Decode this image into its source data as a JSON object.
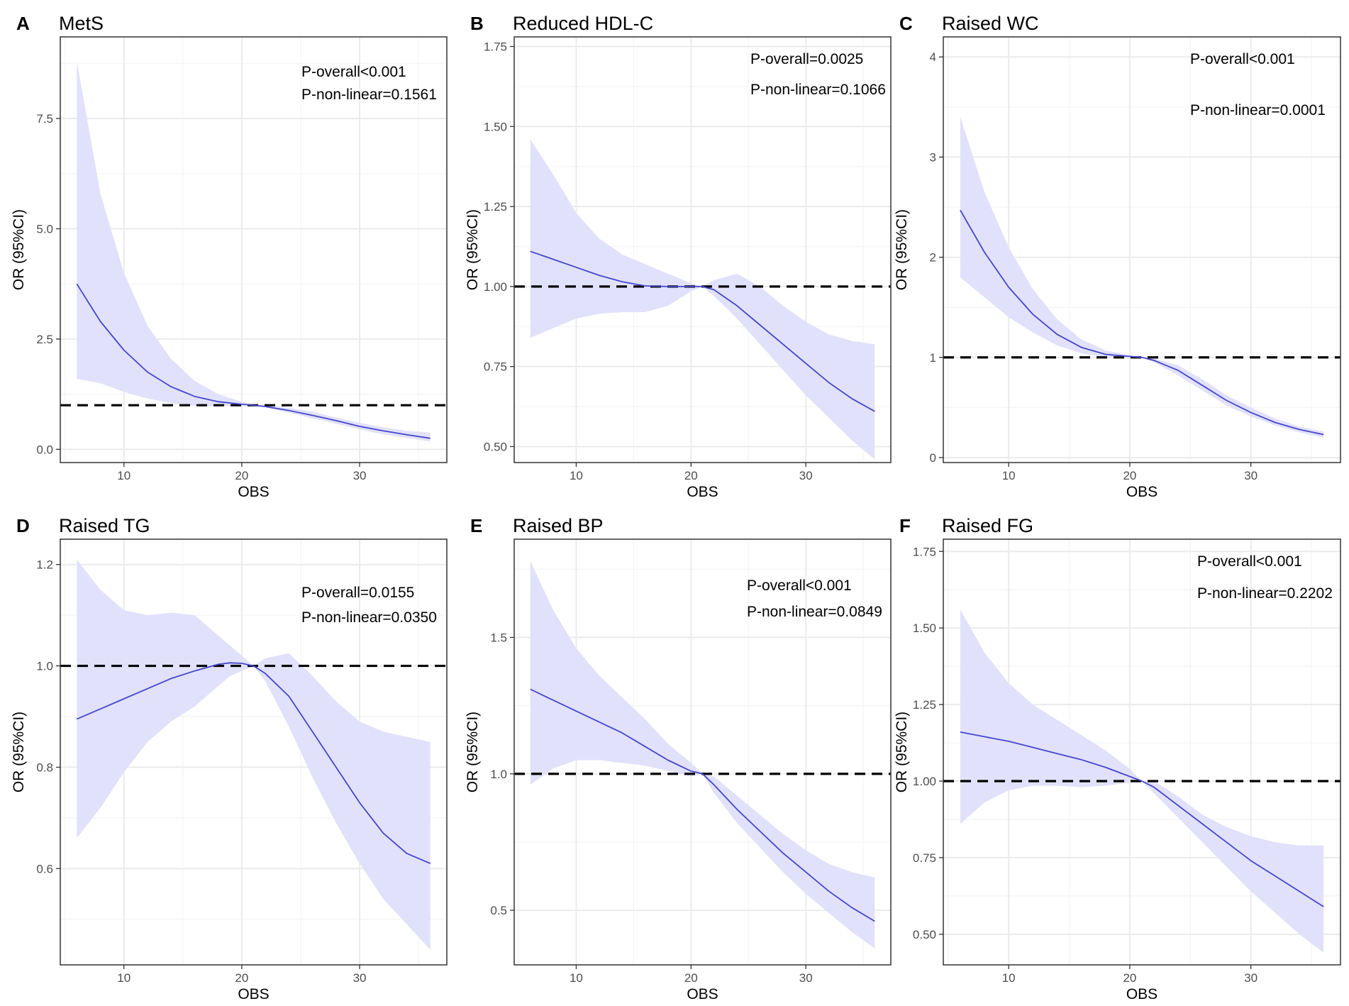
{
  "colors": {
    "band": "#e1e1fb",
    "line": "#4646cc",
    "reference": "#000000",
    "grid_major": "#ebebeb",
    "grid_minor": "#f4f4f4",
    "frame": "#333333"
  },
  "chart_data": [
    {
      "type": "line",
      "panel": "A",
      "title": "MetS",
      "xlabel": "OBS",
      "ylabel": "OR (95%CI)",
      "xlim": [
        4.6,
        37.4
      ],
      "ylim": [
        -0.3,
        9.35
      ],
      "xticks": [
        10,
        20,
        30
      ],
      "yticks": [
        0.0,
        2.5,
        5.0,
        7.5
      ],
      "ytick_labels": [
        "0.0",
        "2.5",
        "5.0",
        "7.5"
      ],
      "reference_line": 1,
      "annotations": [
        "P-overall<0.001",
        "P-non-linear=0.1561"
      ],
      "series": [
        {
          "name": "OR",
          "x": [
            6,
            8,
            10,
            12,
            14,
            16,
            18,
            20,
            21,
            22,
            24,
            26,
            28,
            30,
            32,
            34,
            36
          ],
          "y": [
            3.75,
            2.9,
            2.25,
            1.75,
            1.42,
            1.2,
            1.08,
            1.02,
            1.0,
            0.97,
            0.88,
            0.77,
            0.65,
            0.52,
            0.42,
            0.33,
            0.25
          ]
        },
        {
          "name": "95% CI lower",
          "x": [
            6,
            8,
            10,
            12,
            14,
            16,
            18,
            20,
            21,
            22,
            24,
            26,
            28,
            30,
            32,
            34,
            36
          ],
          "y": [
            1.6,
            1.5,
            1.3,
            1.15,
            1.05,
            0.98,
            0.98,
            0.99,
            1.0,
            0.95,
            0.83,
            0.7,
            0.58,
            0.45,
            0.34,
            0.26,
            0.18
          ]
        },
        {
          "name": "95% CI upper",
          "x": [
            6,
            8,
            10,
            12,
            14,
            16,
            18,
            20,
            21,
            22,
            24,
            26,
            28,
            30,
            32,
            34,
            36
          ],
          "y": [
            8.8,
            5.8,
            4.0,
            2.8,
            2.05,
            1.55,
            1.25,
            1.08,
            1.0,
            1.0,
            0.94,
            0.85,
            0.72,
            0.6,
            0.5,
            0.42,
            0.38
          ]
        }
      ]
    },
    {
      "type": "line",
      "panel": "B",
      "title": "Reduced HDL-C",
      "xlabel": "OBS",
      "ylabel": "OR (95%CI)",
      "xlim": [
        4.6,
        37.4
      ],
      "ylim": [
        0.45,
        1.78
      ],
      "xticks": [
        10,
        20,
        30
      ],
      "yticks": [
        0.5,
        0.75,
        1.0,
        1.25,
        1.5,
        1.75
      ],
      "ytick_labels": [
        "0.50",
        "0.75",
        "1.00",
        "1.25",
        "1.50",
        "1.75"
      ],
      "reference_line": 1,
      "annotations": [
        "P-overall=0.0025",
        "P-non-linear=0.1066"
      ],
      "series": [
        {
          "name": "OR",
          "x": [
            6,
            8,
            10,
            12,
            14,
            16,
            18,
            20,
            21,
            22,
            24,
            26,
            28,
            30,
            32,
            34,
            36
          ],
          "y": [
            1.11,
            1.085,
            1.06,
            1.035,
            1.015,
            1.002,
            1.0,
            1.0,
            1.0,
            0.99,
            0.94,
            0.88,
            0.82,
            0.76,
            0.7,
            0.65,
            0.61
          ]
        },
        {
          "name": "95% CI lower",
          "x": [
            6,
            8,
            10,
            12,
            14,
            16,
            18,
            20,
            21,
            22,
            24,
            26,
            28,
            30,
            32,
            34,
            36
          ],
          "y": [
            0.84,
            0.87,
            0.9,
            0.915,
            0.92,
            0.92,
            0.94,
            0.985,
            1.0,
            0.97,
            0.9,
            0.82,
            0.74,
            0.66,
            0.59,
            0.52,
            0.46
          ]
        },
        {
          "name": "95% CI upper",
          "x": [
            6,
            8,
            10,
            12,
            14,
            16,
            18,
            20,
            21,
            22,
            24,
            26,
            28,
            30,
            32,
            34,
            36
          ],
          "y": [
            1.46,
            1.35,
            1.23,
            1.15,
            1.1,
            1.07,
            1.04,
            1.01,
            1.0,
            1.02,
            1.04,
            1.0,
            0.94,
            0.89,
            0.85,
            0.83,
            0.82
          ]
        }
      ]
    },
    {
      "type": "line",
      "panel": "C",
      "title": "Raised WC",
      "xlabel": "OBS",
      "ylabel": "OR (95%CI)",
      "xlim": [
        4.6,
        37.4
      ],
      "ylim": [
        -0.05,
        4.2
      ],
      "xticks": [
        10,
        20,
        30
      ],
      "yticks": [
        0,
        1,
        2,
        3,
        4
      ],
      "ytick_labels": [
        "0",
        "1",
        "2",
        "3",
        "4"
      ],
      "reference_line": 1,
      "annotations": [
        "P-overall<0.001",
        "P-non-linear=0.0001"
      ],
      "series": [
        {
          "name": "OR",
          "x": [
            6,
            8,
            10,
            12,
            14,
            16,
            18,
            20,
            21,
            22,
            24,
            26,
            28,
            30,
            32,
            34,
            36
          ],
          "y": [
            2.47,
            2.05,
            1.7,
            1.43,
            1.23,
            1.1,
            1.03,
            1.01,
            1.0,
            0.97,
            0.87,
            0.72,
            0.57,
            0.45,
            0.35,
            0.28,
            0.23
          ]
        },
        {
          "name": "95% CI lower",
          "x": [
            6,
            8,
            10,
            12,
            14,
            16,
            18,
            20,
            21,
            22,
            24,
            26,
            28,
            30,
            32,
            34,
            36
          ],
          "y": [
            1.8,
            1.6,
            1.4,
            1.25,
            1.12,
            1.04,
            1.0,
            0.99,
            1.0,
            0.95,
            0.82,
            0.67,
            0.52,
            0.41,
            0.32,
            0.25,
            0.2
          ]
        },
        {
          "name": "95% CI upper",
          "x": [
            6,
            8,
            10,
            12,
            14,
            16,
            18,
            20,
            21,
            22,
            24,
            26,
            28,
            30,
            32,
            34,
            36
          ],
          "y": [
            3.4,
            2.65,
            2.1,
            1.68,
            1.38,
            1.18,
            1.07,
            1.02,
            1.0,
            0.99,
            0.92,
            0.78,
            0.62,
            0.5,
            0.39,
            0.31,
            0.26
          ]
        }
      ]
    },
    {
      "type": "line",
      "panel": "D",
      "title": "Raised TG",
      "xlabel": "OBS",
      "ylabel": "OR (95%CI)",
      "xlim": [
        4.6,
        37.4
      ],
      "ylim": [
        0.41,
        1.25
      ],
      "xticks": [
        10,
        20,
        30
      ],
      "yticks": [
        0.6,
        0.8,
        1.0,
        1.2
      ],
      "ytick_labels": [
        "0.6",
        "0.8",
        "1.0",
        "1.2"
      ],
      "reference_line": 1,
      "annotations": [
        "P-overall=0.0155",
        "P-non-linear=0.0350"
      ],
      "series": [
        {
          "name": "OR",
          "x": [
            6,
            8,
            10,
            12,
            14,
            16,
            18,
            19,
            20,
            21,
            22,
            24,
            26,
            28,
            30,
            32,
            34,
            36
          ],
          "y": [
            0.895,
            0.915,
            0.935,
            0.955,
            0.975,
            0.99,
            1.003,
            1.006,
            1.005,
            1.0,
            0.985,
            0.94,
            0.87,
            0.8,
            0.73,
            0.67,
            0.63,
            0.61
          ]
        },
        {
          "name": "95% CI lower",
          "x": [
            6,
            8,
            10,
            12,
            14,
            16,
            18,
            19,
            20,
            21,
            22,
            24,
            26,
            28,
            30,
            32,
            34,
            36
          ],
          "y": [
            0.66,
            0.72,
            0.79,
            0.85,
            0.89,
            0.92,
            0.96,
            0.98,
            0.99,
            1.0,
            0.97,
            0.88,
            0.78,
            0.69,
            0.61,
            0.54,
            0.49,
            0.44
          ]
        },
        {
          "name": "95% CI upper",
          "x": [
            6,
            8,
            10,
            12,
            14,
            16,
            18,
            19,
            20,
            21,
            22,
            24,
            26,
            28,
            30,
            32,
            34,
            36
          ],
          "y": [
            1.21,
            1.15,
            1.11,
            1.1,
            1.105,
            1.1,
            1.06,
            1.04,
            1.02,
            1.0,
            1.015,
            1.025,
            0.98,
            0.93,
            0.89,
            0.87,
            0.86,
            0.85
          ]
        }
      ]
    },
    {
      "type": "line",
      "panel": "E",
      "title": "Raised BP",
      "xlabel": "OBS",
      "ylabel": "OR (95%CI)",
      "xlim": [
        4.6,
        37.4
      ],
      "ylim": [
        0.3,
        1.86
      ],
      "xticks": [
        10,
        20,
        30
      ],
      "yticks": [
        0.5,
        1.0,
        1.5
      ],
      "ytick_labels": [
        "0.5",
        "1.0",
        "1.5"
      ],
      "reference_line": 1,
      "annotations": [
        "P-overall<0.001",
        "P-non-linear=0.0849"
      ],
      "series": [
        {
          "name": "OR",
          "x": [
            6,
            8,
            10,
            12,
            14,
            16,
            18,
            20,
            21,
            22,
            24,
            26,
            28,
            30,
            32,
            34,
            36
          ],
          "y": [
            1.31,
            1.27,
            1.23,
            1.19,
            1.15,
            1.1,
            1.05,
            1.01,
            1.0,
            0.96,
            0.87,
            0.79,
            0.71,
            0.64,
            0.57,
            0.51,
            0.46
          ]
        },
        {
          "name": "95% CI lower",
          "x": [
            6,
            8,
            10,
            12,
            14,
            16,
            18,
            20,
            21,
            22,
            24,
            26,
            28,
            30,
            32,
            34,
            36
          ],
          "y": [
            0.96,
            1.02,
            1.05,
            1.05,
            1.04,
            1.03,
            1.01,
            0.99,
            1.0,
            0.93,
            0.82,
            0.73,
            0.64,
            0.56,
            0.49,
            0.42,
            0.36
          ]
        },
        {
          "name": "95% CI upper",
          "x": [
            6,
            8,
            10,
            12,
            14,
            16,
            18,
            20,
            21,
            22,
            24,
            26,
            28,
            30,
            32,
            34,
            36
          ],
          "y": [
            1.78,
            1.6,
            1.46,
            1.36,
            1.28,
            1.2,
            1.11,
            1.04,
            1.0,
            0.99,
            0.92,
            0.85,
            0.78,
            0.72,
            0.67,
            0.64,
            0.62
          ]
        }
      ]
    },
    {
      "type": "line",
      "panel": "F",
      "title": "Raised FG",
      "xlabel": "OBS",
      "ylabel": "OR (95%CI)",
      "xlim": [
        4.6,
        37.4
      ],
      "ylim": [
        0.4,
        1.79
      ],
      "xticks": [
        10,
        20,
        30
      ],
      "yticks": [
        0.5,
        0.75,
        1.0,
        1.25,
        1.5,
        1.75
      ],
      "ytick_labels": [
        "0.50",
        "0.75",
        "1.00",
        "1.25",
        "1.50",
        "1.75"
      ],
      "reference_line": 1,
      "annotations": [
        "P-overall<0.001",
        "P-non-linear=0.2202"
      ],
      "series": [
        {
          "name": "OR",
          "x": [
            6,
            8,
            10,
            12,
            14,
            16,
            18,
            20,
            21,
            22,
            24,
            26,
            28,
            30,
            32,
            34,
            36
          ],
          "y": [
            1.16,
            1.145,
            1.13,
            1.11,
            1.09,
            1.07,
            1.045,
            1.015,
            1.0,
            0.98,
            0.92,
            0.86,
            0.8,
            0.74,
            0.69,
            0.64,
            0.59
          ]
        },
        {
          "name": "95% CI lower",
          "x": [
            6,
            8,
            10,
            12,
            14,
            16,
            18,
            20,
            21,
            22,
            24,
            26,
            28,
            30,
            32,
            34,
            36
          ],
          "y": [
            0.86,
            0.93,
            0.97,
            0.985,
            0.985,
            0.98,
            0.985,
            0.995,
            1.0,
            0.96,
            0.88,
            0.8,
            0.72,
            0.64,
            0.57,
            0.5,
            0.44
          ]
        },
        {
          "name": "95% CI upper",
          "x": [
            6,
            8,
            10,
            12,
            14,
            16,
            18,
            20,
            21,
            22,
            24,
            26,
            28,
            30,
            32,
            34,
            36
          ],
          "y": [
            1.56,
            1.42,
            1.32,
            1.25,
            1.2,
            1.15,
            1.1,
            1.04,
            1.0,
            1.0,
            0.95,
            0.89,
            0.85,
            0.82,
            0.8,
            0.79,
            0.79
          ]
        }
      ]
    }
  ]
}
